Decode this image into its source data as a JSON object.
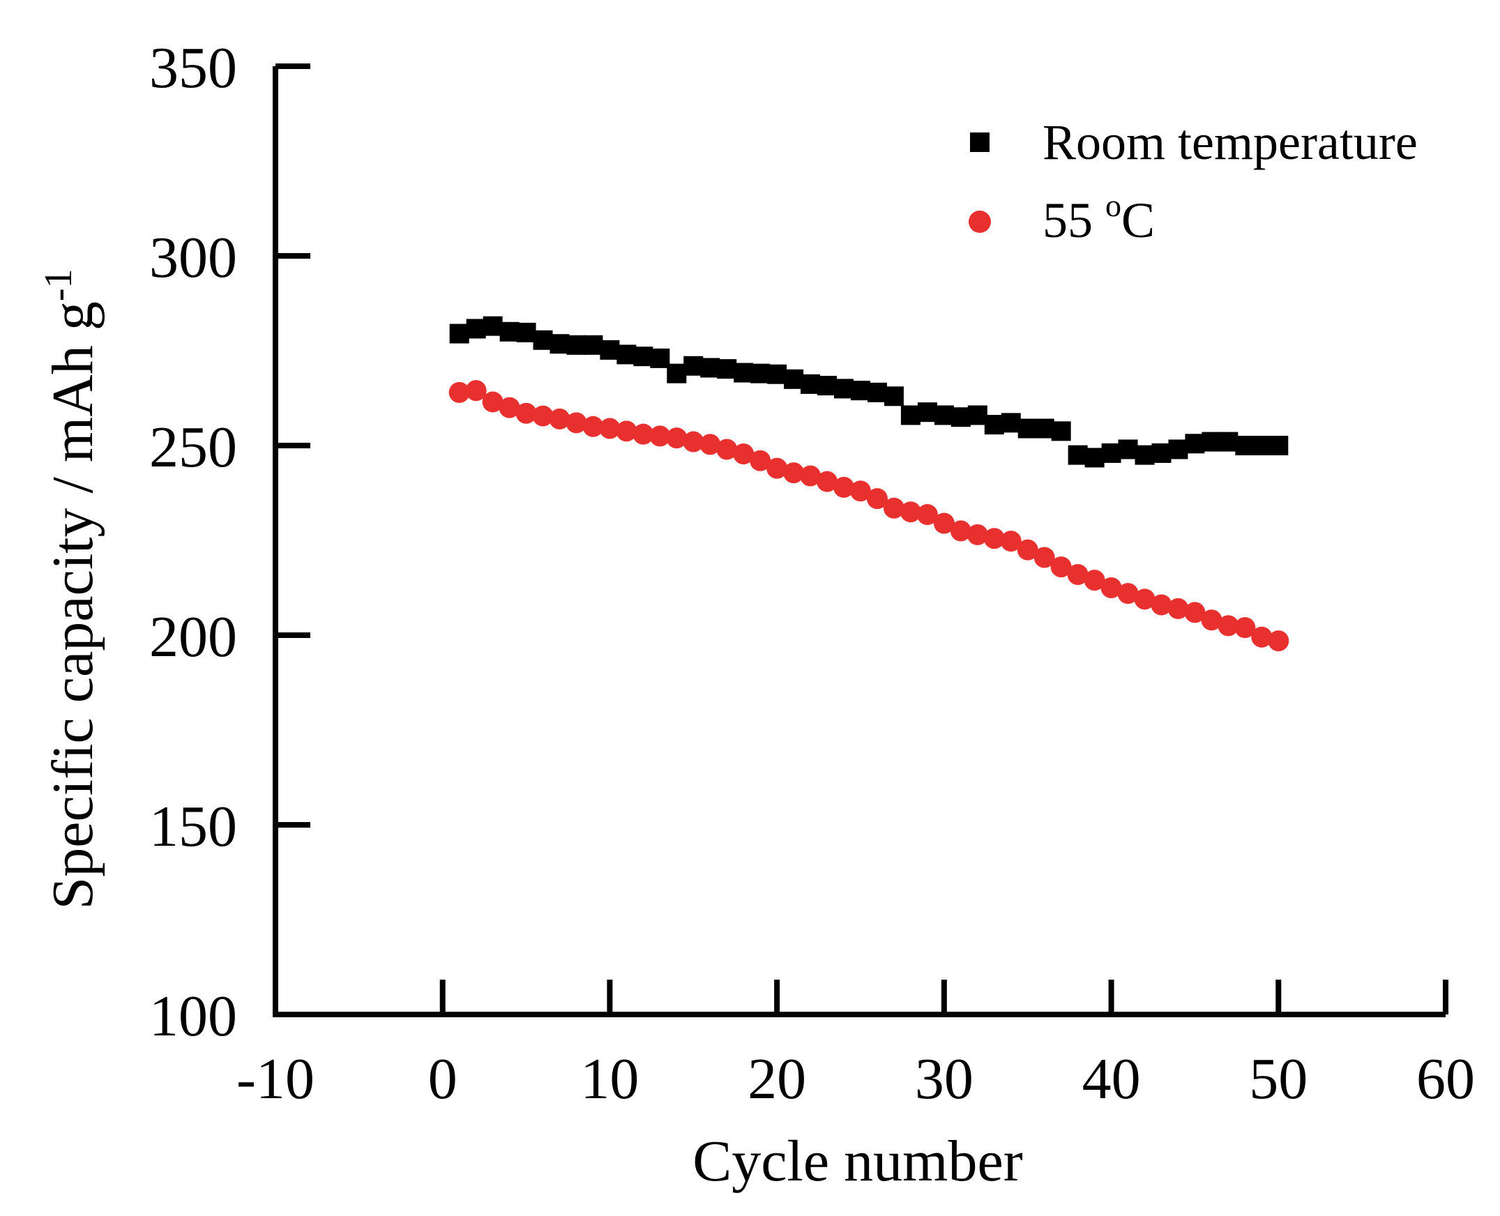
{
  "chart_data": {
    "type": "scatter",
    "title": "",
    "xlabel": "Cycle number",
    "ylabel": "Specific capacity / mAh g",
    "ylabel_superscript": "-1",
    "xlim": [
      -10,
      60
    ],
    "ylim": [
      100,
      350
    ],
    "xticks": [
      -10,
      0,
      10,
      20,
      30,
      40,
      50,
      60
    ],
    "yticks": [
      100,
      150,
      200,
      250,
      300,
      350
    ],
    "grid": false,
    "legend_position": "top-right",
    "series": [
      {
        "name": "Room temperature",
        "marker": "square",
        "color": "#000000",
        "x": [
          1,
          2,
          3,
          4,
          5,
          6,
          7,
          8,
          9,
          10,
          11,
          12,
          13,
          14,
          15,
          16,
          17,
          18,
          19,
          20,
          21,
          22,
          23,
          24,
          25,
          26,
          27,
          28,
          29,
          30,
          31,
          32,
          33,
          34,
          35,
          36,
          37,
          38,
          39,
          40,
          41,
          42,
          43,
          44,
          45,
          46,
          47,
          48,
          49,
          50
        ],
        "values": [
          279.5,
          280.8,
          281.5,
          280.0,
          279.8,
          277.8,
          276.8,
          276.5,
          276.5,
          275.2,
          274.0,
          273.5,
          273.0,
          269.0,
          271.0,
          270.5,
          270.2,
          269.2,
          269.0,
          268.8,
          267.5,
          266.2,
          265.8,
          265.0,
          264.5,
          264.0,
          263.0,
          258.0,
          258.8,
          258.0,
          257.5,
          258.0,
          255.5,
          256.0,
          254.5,
          254.5,
          253.8,
          247.5,
          246.8,
          248.0,
          249.0,
          247.5,
          248.0,
          249.0,
          250.5,
          251.0,
          251.0,
          250.0,
          250.0,
          250.0
        ]
      },
      {
        "name": "55 oC",
        "label_number": "55 ",
        "label_superscript": "o",
        "label_unit": "C",
        "marker": "circle",
        "color": "#e8302f",
        "x": [
          1,
          2,
          3,
          4,
          5,
          6,
          7,
          8,
          9,
          10,
          11,
          12,
          13,
          14,
          15,
          16,
          17,
          18,
          19,
          20,
          21,
          22,
          23,
          24,
          25,
          26,
          27,
          28,
          29,
          30,
          31,
          32,
          33,
          34,
          35,
          36,
          37,
          38,
          39,
          40,
          41,
          42,
          43,
          44,
          45,
          46,
          47,
          48,
          49,
          50
        ],
        "values": [
          264.0,
          264.5,
          261.5,
          260.0,
          258.5,
          257.8,
          257.0,
          256.0,
          255.0,
          254.5,
          253.8,
          253.0,
          252.5,
          252.0,
          251.0,
          250.3,
          249.0,
          247.8,
          246.0,
          244.0,
          242.8,
          242.0,
          240.5,
          239.0,
          238.0,
          236.0,
          233.5,
          232.5,
          231.8,
          229.5,
          227.5,
          226.5,
          225.5,
          224.8,
          222.5,
          220.5,
          218.0,
          216.0,
          214.5,
          212.5,
          211.0,
          209.5,
          208.0,
          207.0,
          206.0,
          204.0,
          202.5,
          202.0,
          199.5,
          198.5
        ]
      }
    ]
  }
}
